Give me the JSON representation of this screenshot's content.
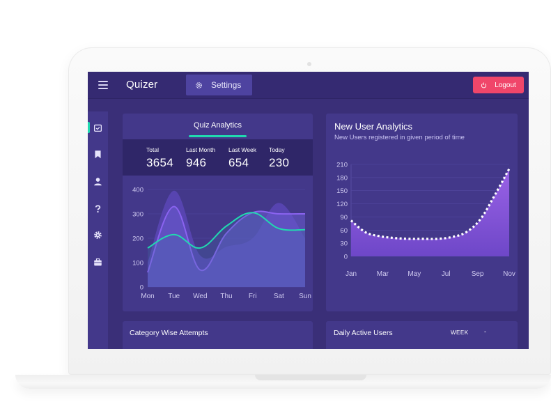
{
  "app": {
    "title": "Quizer"
  },
  "topbar": {
    "settings_label": "Settings",
    "logout_label": "Logout"
  },
  "sidebar": {
    "items": [
      {
        "name": "dashboard",
        "icon": "calendar-check-icon",
        "active": true
      },
      {
        "name": "bookmarks",
        "icon": "bookmark-icon"
      },
      {
        "name": "users",
        "icon": "user-icon"
      },
      {
        "name": "help",
        "icon": "question-icon"
      },
      {
        "name": "settings",
        "icon": "gear-icon"
      },
      {
        "name": "jobs",
        "icon": "briefcase-icon"
      }
    ]
  },
  "quiz_analytics": {
    "title": "Quiz Analytics",
    "stats": [
      {
        "label": "Total",
        "value": "3654"
      },
      {
        "label": "Last Month",
        "value": "946"
      },
      {
        "label": "Last Week",
        "value": "654"
      },
      {
        "label": "Today",
        "value": "230"
      }
    ]
  },
  "new_users": {
    "title": "New User Analytics",
    "subtitle": "New Users registered in given period of time"
  },
  "category": {
    "title": "Category Wise Attempts"
  },
  "daily": {
    "title": "Daily Active Users",
    "range_label": "WEEK",
    "caret": "-"
  },
  "colors": {
    "screen_bg": "#3a2f78",
    "card_bg": "#43388a",
    "accent_teal": "#21d9b0",
    "accent_purple": "#8a63f0",
    "logout_red": "#f0466a"
  },
  "chart_data": [
    {
      "type": "area",
      "title": "",
      "categories": [
        "Mon",
        "Tue",
        "Wed",
        "Thu",
        "Fri",
        "Sat",
        "Sun"
      ],
      "yticks": [
        "0",
        "100",
        "200",
        "300",
        "400"
      ],
      "ylim": [
        0,
        400
      ],
      "grid": true,
      "series": [
        {
          "values": [
            100,
            395,
            130,
            165,
            200,
            345,
            200
          ]
        },
        {
          "values": [
            60,
            330,
            70,
            220,
            305,
            300,
            300
          ]
        },
        {
          "values": [
            160,
            215,
            160,
            250,
            305,
            240,
            235
          ]
        }
      ]
    },
    {
      "type": "area",
      "categories": [
        "Jan",
        "Mar",
        "May",
        "Jul",
        "Sep",
        "Nov"
      ],
      "yticks": [
        "0",
        "30",
        "60",
        "90",
        "120",
        "150",
        "180",
        "210"
      ],
      "ylim": [
        0,
        210
      ],
      "grid": true,
      "x": [
        1,
        2,
        3,
        4,
        5,
        6,
        7,
        8,
        9,
        10,
        11,
        12
      ],
      "values": [
        82,
        55,
        46,
        42,
        40,
        40,
        40,
        44,
        55,
        85,
        140,
        200
      ]
    }
  ]
}
